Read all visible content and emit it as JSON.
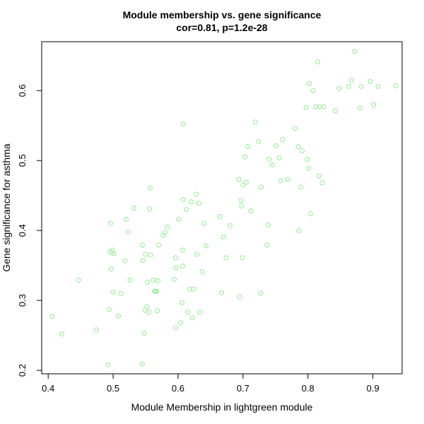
{
  "chart_data": {
    "type": "scatter",
    "title": "Module membership vs. gene significance",
    "subtitle": "cor=0.81, p=1.2e-28",
    "xlabel": "Module Membership in lightgreen module",
    "ylabel": "Gene significance for asthma",
    "xlim": [
      0.39,
      0.945
    ],
    "ylim": [
      0.195,
      0.67
    ],
    "xticks": [
      0.4,
      0.5,
      0.6,
      0.7,
      0.8,
      0.9
    ],
    "yticks": [
      0.2,
      0.3,
      0.4,
      0.5,
      0.6
    ],
    "xtick_labels": [
      "0.4",
      "0.5",
      "0.6",
      "0.7",
      "0.8",
      "0.9"
    ],
    "ytick_labels": [
      "0.2",
      "0.3",
      "0.4",
      "0.5",
      "0.6"
    ],
    "grid": false,
    "point_style": "open-circle",
    "point_color": "#90EE90",
    "x": [
      0.406,
      0.421,
      0.447,
      0.474,
      0.492,
      0.494,
      0.496,
      0.496,
      0.497,
      0.499,
      0.5,
      0.501,
      0.508,
      0.512,
      0.518,
      0.52,
      0.523,
      0.526,
      0.532,
      0.545,
      0.545,
      0.546,
      0.548,
      0.549,
      0.55,
      0.552,
      0.553,
      0.555,
      0.556,
      0.557,
      0.558,
      0.562,
      0.564,
      0.565,
      0.567,
      0.568,
      0.569,
      0.57,
      0.577,
      0.58,
      0.584,
      0.594,
      0.596,
      0.596,
      0.597,
      0.601,
      0.604,
      0.606,
      0.607,
      0.607,
      0.608,
      0.608,
      0.613,
      0.615,
      0.618,
      0.62,
      0.622,
      0.624,
      0.628,
      0.629,
      0.632,
      0.634,
      0.637,
      0.64,
      0.643,
      0.664,
      0.667,
      0.67,
      0.674,
      0.68,
      0.694,
      0.695,
      0.697,
      0.698,
      0.699,
      0.7,
      0.703,
      0.705,
      0.707,
      0.712,
      0.719,
      0.724,
      0.727,
      0.728,
      0.737,
      0.739,
      0.74,
      0.745,
      0.751,
      0.756,
      0.758,
      0.761,
      0.769,
      0.78,
      0.785,
      0.786,
      0.789,
      0.791,
      0.797,
      0.799,
      0.801,
      0.802,
      0.804,
      0.808,
      0.812,
      0.815,
      0.817,
      0.818,
      0.822,
      0.824,
      0.842,
      0.848,
      0.863,
      0.867,
      0.872,
      0.88,
      0.882,
      0.896,
      0.901,
      0.908,
      0.935
    ],
    "y": [
      0.277,
      0.252,
      0.329,
      0.258,
      0.208,
      0.287,
      0.369,
      0.41,
      0.345,
      0.372,
      0.312,
      0.367,
      0.278,
      0.31,
      0.357,
      0.416,
      0.398,
      0.329,
      0.432,
      0.209,
      0.379,
      0.357,
      0.253,
      0.286,
      0.366,
      0.291,
      0.326,
      0.283,
      0.431,
      0.461,
      0.365,
      0.329,
      0.313,
      0.313,
      0.313,
      0.285,
      0.328,
      0.379,
      0.393,
      0.397,
      0.405,
      0.33,
      0.261,
      0.361,
      0.347,
      0.416,
      0.268,
      0.297,
      0.349,
      0.372,
      0.444,
      0.552,
      0.43,
      0.283,
      0.316,
      0.441,
      0.275,
      0.316,
      0.452,
      0.366,
      0.439,
      0.283,
      0.341,
      0.41,
      0.378,
      0.42,
      0.311,
      0.391,
      0.361,
      0.407,
      0.473,
      0.305,
      0.443,
      0.435,
      0.361,
      0.465,
      0.505,
      0.469,
      0.52,
      0.428,
      0.555,
      0.527,
      0.31,
      0.462,
      0.379,
      0.408,
      0.502,
      0.494,
      0.521,
      0.504,
      0.471,
      0.53,
      0.473,
      0.546,
      0.52,
      0.4,
      0.462,
      0.514,
      0.576,
      0.502,
      0.489,
      0.61,
      0.424,
      0.6,
      0.577,
      0.641,
      0.478,
      0.577,
      0.468,
      0.577,
      0.571,
      0.603,
      0.606,
      0.615,
      0.656,
      0.575,
      0.606,
      0.613,
      0.58,
      0.606,
      0.607
    ]
  }
}
